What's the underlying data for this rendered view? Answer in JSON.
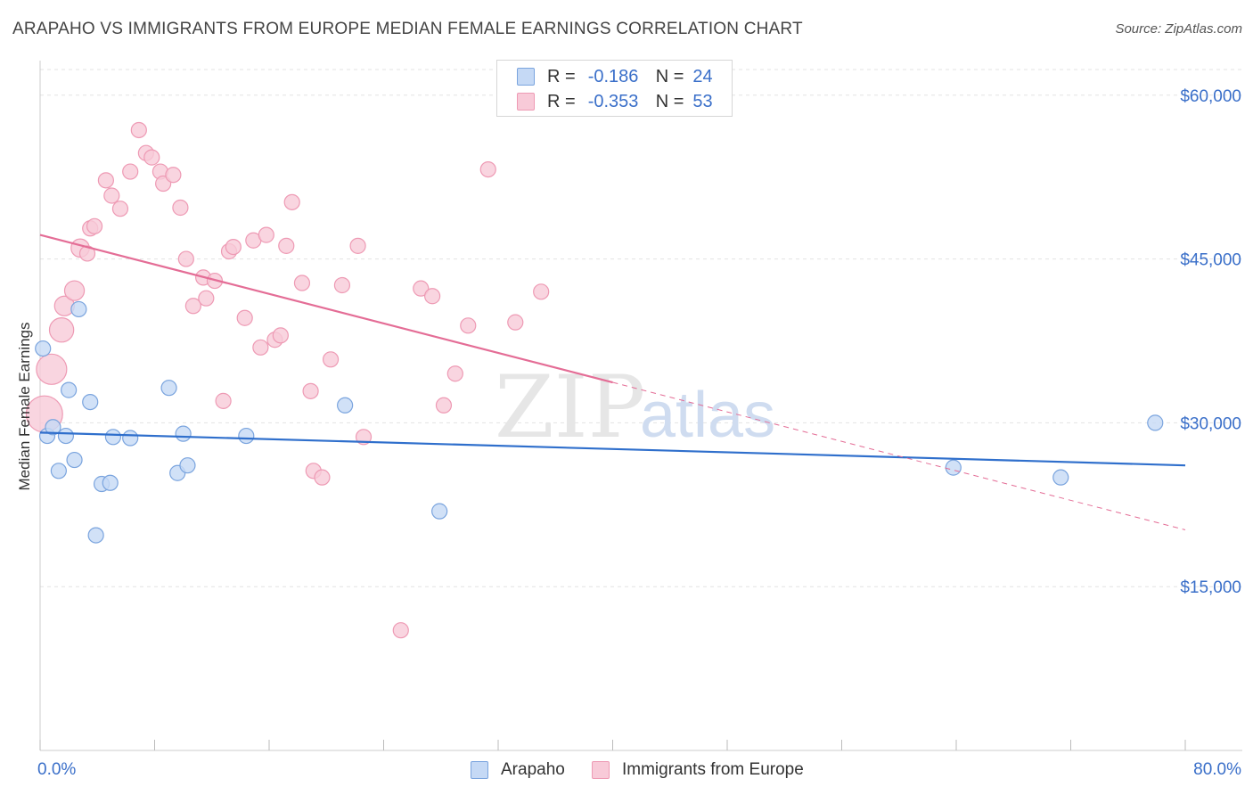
{
  "header": {
    "title": "ARAPAHO VS IMMIGRANTS FROM EUROPE MEDIAN FEMALE EARNINGS CORRELATION CHART",
    "source": "Source: ZipAtlas.com"
  },
  "watermark": {
    "zip": "ZIP",
    "atlas": "atlas"
  },
  "stats_legend": {
    "rows": [
      {
        "r_label": "R =",
        "r_value": "-0.186",
        "n_label": "N =",
        "n_value": "24"
      },
      {
        "r_label": "R =",
        "r_value": "-0.353",
        "n_label": "N =",
        "n_value": "53"
      }
    ]
  },
  "colors": {
    "arapaho_fill": "#c5d9f5",
    "arapaho_stroke": "#7aa4de",
    "arapaho_line": "#2f6fcc",
    "europe_fill": "#f8cad8",
    "europe_stroke": "#ee9ab4",
    "europe_line": "#e46d96",
    "axis_value": "#3a6fc9",
    "grid": "#e3e3e3"
  },
  "chart_data": {
    "type": "scatter",
    "title": "ARAPAHO VS IMMIGRANTS FROM EUROPE MEDIAN FEMALE EARNINGS CORRELATION CHART",
    "xlabel": "",
    "ylabel": "Median Female Earnings",
    "xlim": [
      0,
      80
    ],
    "ylim": [
      0,
      63000
    ],
    "x_tick_labels": [
      "0.0%",
      "80.0%"
    ],
    "y_ticks": [
      15000,
      30000,
      45000,
      60000
    ],
    "y_tick_labels": [
      "$15,000",
      "$30,000",
      "$45,000",
      "$60,000"
    ],
    "grid": true,
    "legend_position": "bottom",
    "series": [
      {
        "name": "Arapaho",
        "r": -0.186,
        "n": 24,
        "trend": {
          "x": [
            0,
            80
          ],
          "y": [
            29100,
            26100
          ],
          "dashed_from": null
        },
        "points": [
          {
            "x": 0.2,
            "y": 36800,
            "s": 1
          },
          {
            "x": 0.5,
            "y": 28800,
            "s": 1
          },
          {
            "x": 0.9,
            "y": 29600,
            "s": 1
          },
          {
            "x": 1.3,
            "y": 25600,
            "s": 1
          },
          {
            "x": 1.8,
            "y": 28800,
            "s": 1
          },
          {
            "x": 2.0,
            "y": 33000,
            "s": 1
          },
          {
            "x": 2.4,
            "y": 26600,
            "s": 1
          },
          {
            "x": 2.7,
            "y": 40400,
            "s": 1
          },
          {
            "x": 3.5,
            "y": 31900,
            "s": 1
          },
          {
            "x": 3.9,
            "y": 19700,
            "s": 1
          },
          {
            "x": 4.3,
            "y": 24400,
            "s": 1
          },
          {
            "x": 4.9,
            "y": 24500,
            "s": 1
          },
          {
            "x": 5.1,
            "y": 28700,
            "s": 1
          },
          {
            "x": 6.3,
            "y": 28600,
            "s": 1
          },
          {
            "x": 9.0,
            "y": 33200,
            "s": 1
          },
          {
            "x": 9.6,
            "y": 25400,
            "s": 1
          },
          {
            "x": 10.0,
            "y": 29000,
            "s": 1
          },
          {
            "x": 10.3,
            "y": 26100,
            "s": 1
          },
          {
            "x": 14.4,
            "y": 28800,
            "s": 1
          },
          {
            "x": 21.3,
            "y": 31600,
            "s": 1
          },
          {
            "x": 27.9,
            "y": 21900,
            "s": 1
          },
          {
            "x": 63.8,
            "y": 25900,
            "s": 1
          },
          {
            "x": 71.3,
            "y": 25000,
            "s": 1
          },
          {
            "x": 77.9,
            "y": 30000,
            "s": 1
          }
        ]
      },
      {
        "name": "Immigrants from Europe",
        "r": -0.353,
        "n": 53,
        "trend": {
          "x": [
            0,
            80
          ],
          "y": [
            47200,
            20200
          ],
          "dashed_from": 40
        },
        "points": [
          {
            "x": 0.3,
            "y": 30800,
            "s": 2.4
          },
          {
            "x": 0.8,
            "y": 34900,
            "s": 2.0
          },
          {
            "x": 1.5,
            "y": 38500,
            "s": 1.6
          },
          {
            "x": 1.7,
            "y": 40700,
            "s": 1.3
          },
          {
            "x": 2.4,
            "y": 42100,
            "s": 1.3
          },
          {
            "x": 2.8,
            "y": 46000,
            "s": 1.2
          },
          {
            "x": 3.3,
            "y": 45500,
            "s": 1
          },
          {
            "x": 3.5,
            "y": 47800,
            "s": 1
          },
          {
            "x": 3.8,
            "y": 48000,
            "s": 1
          },
          {
            "x": 4.6,
            "y": 52200,
            "s": 1
          },
          {
            "x": 5.0,
            "y": 50800,
            "s": 1
          },
          {
            "x": 5.6,
            "y": 49600,
            "s": 1
          },
          {
            "x": 6.3,
            "y": 53000,
            "s": 1
          },
          {
            "x": 6.9,
            "y": 56800,
            "s": 1
          },
          {
            "x": 7.4,
            "y": 54700,
            "s": 1
          },
          {
            "x": 7.8,
            "y": 54300,
            "s": 1
          },
          {
            "x": 8.4,
            "y": 53000,
            "s": 1
          },
          {
            "x": 8.6,
            "y": 51900,
            "s": 1
          },
          {
            "x": 9.3,
            "y": 52700,
            "s": 1
          },
          {
            "x": 9.8,
            "y": 49700,
            "s": 1
          },
          {
            "x": 10.2,
            "y": 45000,
            "s": 1
          },
          {
            "x": 10.7,
            "y": 40700,
            "s": 1
          },
          {
            "x": 11.4,
            "y": 43300,
            "s": 1
          },
          {
            "x": 11.6,
            "y": 41400,
            "s": 1
          },
          {
            "x": 12.2,
            "y": 43000,
            "s": 1
          },
          {
            "x": 12.8,
            "y": 32000,
            "s": 1
          },
          {
            "x": 13.2,
            "y": 45700,
            "s": 1
          },
          {
            "x": 13.5,
            "y": 46100,
            "s": 1
          },
          {
            "x": 14.3,
            "y": 39600,
            "s": 1
          },
          {
            "x": 14.9,
            "y": 46700,
            "s": 1
          },
          {
            "x": 15.4,
            "y": 36900,
            "s": 1
          },
          {
            "x": 15.8,
            "y": 47200,
            "s": 1
          },
          {
            "x": 16.4,
            "y": 37600,
            "s": 1
          },
          {
            "x": 16.8,
            "y": 38000,
            "s": 1
          },
          {
            "x": 17.2,
            "y": 46200,
            "s": 1
          },
          {
            "x": 17.6,
            "y": 50200,
            "s": 1
          },
          {
            "x": 18.3,
            "y": 42800,
            "s": 1
          },
          {
            "x": 18.9,
            "y": 32900,
            "s": 1
          },
          {
            "x": 19.1,
            "y": 25600,
            "s": 1
          },
          {
            "x": 19.7,
            "y": 25000,
            "s": 1
          },
          {
            "x": 20.3,
            "y": 35800,
            "s": 1
          },
          {
            "x": 21.1,
            "y": 42600,
            "s": 1
          },
          {
            "x": 22.2,
            "y": 46200,
            "s": 1
          },
          {
            "x": 22.6,
            "y": 28700,
            "s": 1
          },
          {
            "x": 25.2,
            "y": 11000,
            "s": 1
          },
          {
            "x": 26.6,
            "y": 42300,
            "s": 1
          },
          {
            "x": 27.4,
            "y": 41600,
            "s": 1
          },
          {
            "x": 28.2,
            "y": 31600,
            "s": 1
          },
          {
            "x": 29.0,
            "y": 34500,
            "s": 1
          },
          {
            "x": 29.9,
            "y": 38900,
            "s": 1
          },
          {
            "x": 31.3,
            "y": 53200,
            "s": 1
          },
          {
            "x": 33.2,
            "y": 39200,
            "s": 1
          },
          {
            "x": 35.0,
            "y": 42000,
            "s": 1
          }
        ]
      }
    ]
  },
  "legend": {
    "items": [
      {
        "label": "Arapaho"
      },
      {
        "label": "Immigrants from Europe"
      }
    ]
  }
}
